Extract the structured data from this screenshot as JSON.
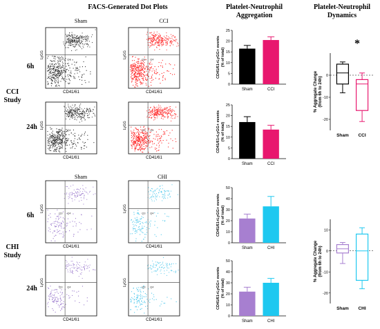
{
  "headers": {
    "dot_plots": "FACS-Generated Dot Plots",
    "aggregation": "Platelet-Neutrophil Aggregation",
    "dynamics": "Platelet-Neutrophil Dynamics"
  },
  "row_labels": {
    "cci_6h": "6h",
    "cci_24h": "24h",
    "chi_6h": "6h",
    "chi_24h": "24h",
    "cci_study": "CCI Study",
    "chi_study": "CHI Study"
  },
  "column_labels": {
    "cci_sham": "Sham",
    "cci_cci": "CCI",
    "chi_sham": "Sham",
    "chi_chi": "CHI"
  },
  "dot_plot_axes": {
    "x": "CD41/61",
    "y": "LyGG"
  },
  "quadrant_labels": {
    "q3": "Q3",
    "q4": "Q4"
  },
  "significance_marker": "*",
  "colors": {
    "sham_cci": "#000000",
    "cci": "#e8176e",
    "dot_cci": "#ff2020",
    "sham_chi": "#a77fd0",
    "chi": "#1ec8f0",
    "dot_chi": "#4fc8ec",
    "dot_sham_chi": "#9a78cc",
    "dot_sham_cci": "#333333"
  },
  "chart_data": [
    {
      "type": "bar",
      "panel": "CCI 6h aggregation",
      "categories": [
        "Sham",
        "CCI"
      ],
      "values": [
        16.5,
        20.5
      ],
      "errors": [
        1.5,
        1.5
      ],
      "ylabel": "CD41/61+LyGG+ events (% of total)",
      "ylim": [
        0,
        25
      ],
      "yticks": [
        0,
        5,
        10,
        15,
        20,
        25
      ]
    },
    {
      "type": "bar",
      "panel": "CCI 24h aggregation",
      "categories": [
        "Sham",
        "CCI"
      ],
      "values": [
        17.0,
        13.5
      ],
      "errors": [
        2.5,
        2.0
      ],
      "ylabel": "CD41/61+LyGG+ events (% of total)",
      "ylim": [
        0,
        25
      ],
      "yticks": [
        0,
        5,
        10,
        15,
        20,
        25
      ]
    },
    {
      "type": "bar",
      "panel": "CHI 6h aggregation",
      "categories": [
        "Sham",
        "CHI"
      ],
      "values": [
        22,
        33
      ],
      "errors": [
        4,
        9
      ],
      "ylabel": "CD41/61+LyGG+ events (% of total)",
      "ylim": [
        0,
        50
      ],
      "yticks": [
        0,
        10,
        20,
        30,
        40,
        50
      ]
    },
    {
      "type": "bar",
      "panel": "CHI 24h aggregation",
      "categories": [
        "Sham",
        "CHI"
      ],
      "values": [
        22,
        30
      ],
      "errors": [
        4,
        4
      ],
      "ylabel": "CD41/61+LyGG+ events (% of total)",
      "ylim": [
        0,
        50
      ],
      "yticks": [
        0,
        10,
        20,
        30,
        40,
        50
      ]
    },
    {
      "type": "box",
      "panel": "CCI dynamics",
      "categories": [
        "Sham",
        "CCI"
      ],
      "boxes": [
        {
          "min": -8,
          "q1": -4,
          "median": 1,
          "q3": 5,
          "max": 6
        },
        {
          "min": -21,
          "q1": -16,
          "median": -4,
          "q3": -2,
          "max": 1
        }
      ],
      "ylabel": "% Aggregate Change (from 6h to 24h)",
      "ylim": [
        -25,
        10
      ],
      "yticks": [
        -20,
        -10,
        0
      ]
    },
    {
      "type": "box",
      "panel": "CHI dynamics",
      "categories": [
        "Sham",
        "CHI"
      ],
      "boxes": [
        {
          "min": -6,
          "q1": -1,
          "median": 1,
          "q3": 3,
          "max": 4
        },
        {
          "min": -18,
          "q1": -14,
          "median": 0,
          "q3": 8,
          "max": 11
        }
      ],
      "ylabel": "% Aggregate Change (from 6h to 24h)",
      "ylim": [
        -25,
        15
      ],
      "yticks": [
        -20,
        -10,
        0,
        10
      ]
    }
  ]
}
